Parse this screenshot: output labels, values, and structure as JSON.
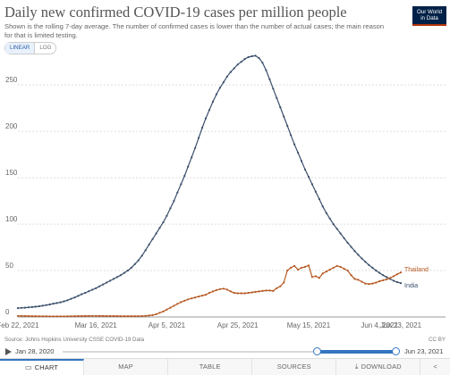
{
  "header": {
    "title": "Daily new confirmed COVID-19 cases per million people",
    "subtitle": "Shown is the rolling 7-day average. The number of confirmed cases is lower than the number of actual cases; the main reason for that is limited testing.",
    "logo_line1": "Our World",
    "logo_line2": "in Data"
  },
  "scale_toggle": {
    "linear_label": "LINEAR",
    "log_label": "LOG",
    "selected": "linear"
  },
  "chart_data": {
    "type": "line",
    "title": "Daily new confirmed COVID-19 cases per million people",
    "xlabel": "",
    "ylabel": "",
    "x_start": "2021-02-22",
    "x_ticks": [
      "Feb 22, 2021",
      "Mar 16, 2021",
      "Apr 5, 2021",
      "Apr 25, 2021",
      "May 15, 2021",
      "Jun 4, 2021",
      "Jun 23, 2021"
    ],
    "y_ticks": [
      0,
      50,
      100,
      150,
      200,
      250
    ],
    "ylim": [
      0,
      280
    ],
    "grid": true,
    "legend": "labels at line ends (right)",
    "series": [
      {
        "name": "India",
        "color": "#3b4f6b",
        "values": [
          9.5,
          9.8,
          10.0,
          10.4,
          10.7,
          11.1,
          11.5,
          12.1,
          12.8,
          13.5,
          14.3,
          15.0,
          15.8,
          16.8,
          18.0,
          19.5,
          21.0,
          22.7,
          24.5,
          26.0,
          27.7,
          29.3,
          31.0,
          33.0,
          35.0,
          37.0,
          39.0,
          41.0,
          43.0,
          45.0,
          47.5,
          50.0,
          53.0,
          57.0,
          61.0,
          66.0,
          72.0,
          78.0,
          84.0,
          90.0,
          96.0,
          102.0,
          109.0,
          117.0,
          125.0,
          134.0,
          143.0,
          152.0,
          162.0,
          172.0,
          182.0,
          193.0,
          204.0,
          214.0,
          223.0,
          232.0,
          240.0,
          247.0,
          253.0,
          259.0,
          264.0,
          268.0,
          272.0,
          275.0,
          278.0,
          280.0,
          281.0,
          281.5,
          279.0,
          274.0,
          266.0,
          256.0,
          246.0,
          236.0,
          226.0,
          216.0,
          206.0,
          196.0,
          186.0,
          177.0,
          168.0,
          159.0,
          151.0,
          143.0,
          135.0,
          127.0,
          119.0,
          112.0,
          106.0,
          100.0,
          95.0,
          90.0,
          85.0,
          80.0,
          75.5,
          71.0,
          67.0,
          63.0,
          59.5,
          56.0,
          53.0,
          50.0,
          47.5,
          45.0,
          43.0,
          41.0,
          39.0,
          37.5,
          36.5
        ]
      },
      {
        "name": "Thailand",
        "color": "#b75923",
        "values": [
          1.2,
          1.1,
          1.0,
          1.0,
          0.9,
          0.9,
          0.8,
          0.8,
          0.8,
          0.7,
          0.7,
          0.7,
          0.7,
          0.7,
          0.8,
          0.8,
          0.9,
          1.0,
          1.0,
          1.1,
          1.1,
          1.2,
          1.2,
          1.1,
          1.1,
          1.0,
          1.0,
          1.0,
          1.0,
          0.9,
          0.9,
          0.9,
          0.9,
          0.9,
          0.9,
          1.0,
          1.2,
          1.5,
          2.0,
          3.0,
          4.5,
          6.0,
          8.0,
          10.0,
          12.0,
          14.0,
          16.0,
          17.5,
          19.0,
          20.0,
          21.0,
          22.0,
          23.0,
          24.0,
          26.0,
          27.5,
          29.0,
          30.0,
          30.5,
          29.5,
          27.5,
          26.0,
          25.5,
          25.5,
          25.5,
          26.0,
          26.5,
          27.0,
          27.5,
          28.0,
          28.5,
          28.5,
          28.0,
          31.0,
          33.0,
          37.0,
          50.0,
          53.0,
          55.0,
          51.0,
          53.0,
          54.0,
          55.5,
          43.0,
          44.0,
          42.0,
          47.0,
          49.0,
          51.0,
          53.0,
          55.0,
          54.0,
          52.0,
          50.0,
          45.0,
          41.0,
          40.0,
          38.0,
          36.0,
          35.5,
          36.0,
          37.0,
          38.5,
          39.5,
          40.5,
          42.0,
          44.0,
          46.0,
          48.0
        ]
      }
    ]
  },
  "footer": {
    "source": "Source: Johns Hopkins University CSSE COVID-19 Data",
    "license": "CC BY"
  },
  "timeline": {
    "start_label": "Jan 28, 2020",
    "end_label": "Jun 23, 2021",
    "range_start_fraction": 0.76,
    "range_end_fraction": 1.0
  },
  "tabs": [
    {
      "label": "CHART"
    },
    {
      "label": "MAP"
    },
    {
      "label": "TABLE"
    },
    {
      "label": "SOURCES"
    },
    {
      "label": "DOWNLOAD"
    },
    {
      "label": ""
    }
  ],
  "icons": {
    "play": "play-icon",
    "download": "download-icon",
    "share": "share-icon"
  }
}
